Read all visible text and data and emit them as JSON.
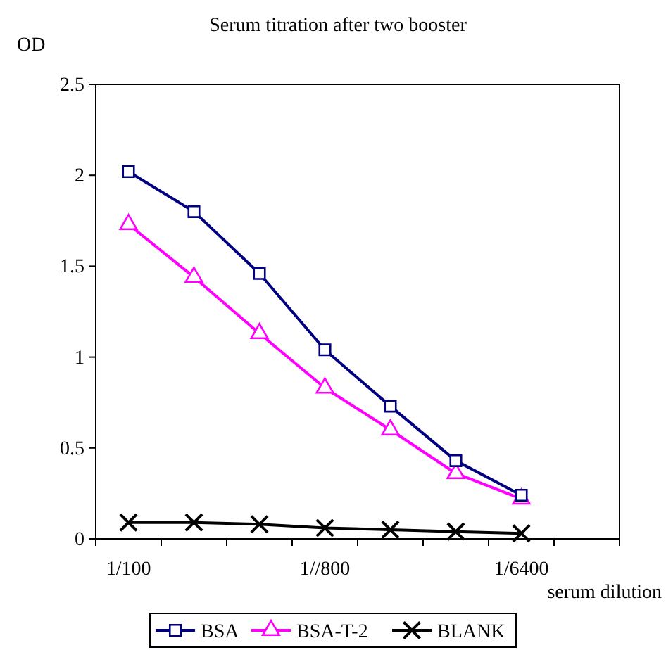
{
  "chart_data": {
    "type": "line",
    "title": "Serum titration after two booster",
    "ylabel": "OD",
    "xlabel": "serum dilution",
    "categories": [
      "1/100",
      null,
      null,
      "1//800",
      null,
      null,
      "1/6400"
    ],
    "ylim": [
      0,
      2.5
    ],
    "yticks": [
      0,
      0.5,
      1,
      1.5,
      2,
      2.5
    ],
    "grid": false,
    "legend": "bottom",
    "line_style": "solid",
    "series": [
      {
        "name": "BSA",
        "color": "#000080",
        "marker": "square",
        "values": [
          2.02,
          1.8,
          1.46,
          1.04,
          0.73,
          0.43,
          0.24
        ]
      },
      {
        "name": "BSA-T-2",
        "color": "#ff00ff",
        "marker": "triangle",
        "values": [
          1.73,
          1.44,
          1.13,
          0.83,
          0.6,
          0.36,
          0.22
        ]
      },
      {
        "name": "BLANK",
        "color": "#000000",
        "marker": "cross",
        "values": [
          0.09,
          0.09,
          0.08,
          0.06,
          0.05,
          0.04,
          0.03
        ]
      }
    ]
  }
}
